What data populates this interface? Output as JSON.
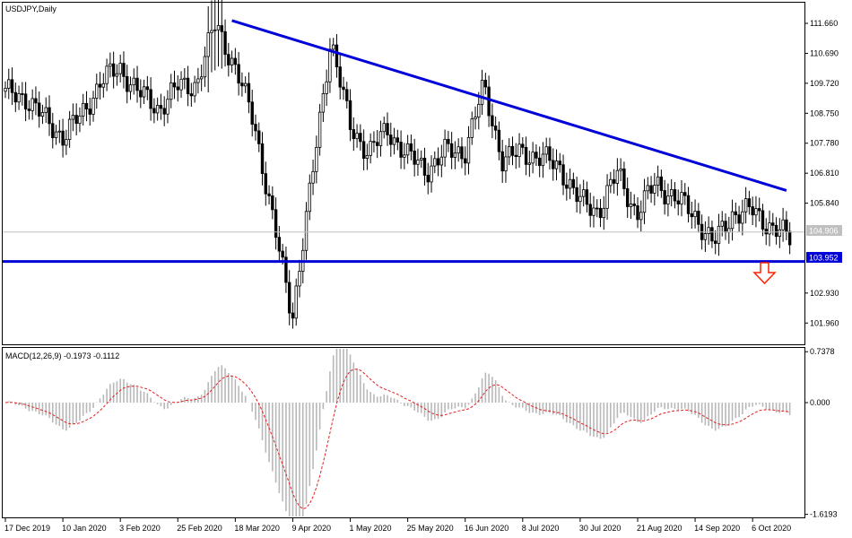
{
  "window": {
    "title": "USDJPY,Daily",
    "colors": {
      "background": "#ffffff",
      "frame": "#000000",
      "candle": "#000000",
      "trendline": "#0000d8",
      "current_price_line": "#c0c0c0",
      "macd_histogram": "#b8b8b8",
      "macd_signal": "#e02020",
      "arrow": "#ff2000"
    }
  },
  "chart_data": [
    {
      "type": "candlestick",
      "title": "USDJPY,Daily",
      "symbol": "USDJPY",
      "timeframe": "Daily",
      "ylim": [
        101.3,
        112.3
      ],
      "y_ticks": [
        "111.660",
        "110.690",
        "109.720",
        "108.750",
        "107.780",
        "106.810",
        "105.840",
        "102.930",
        "101.960"
      ],
      "y_tick_values": [
        111.66,
        110.69,
        109.72,
        108.75,
        107.78,
        106.81,
        105.84,
        102.93,
        101.96
      ],
      "x_ticks": [
        "17 Dec 2019",
        "10 Jan 2020",
        "3 Feb 2020",
        "25 Feb 2020",
        "18 Mar 2020",
        "9 Apr 2020",
        "1 May 2020",
        "25 May 2020",
        "16 Jun 2020",
        "8 Jul 2020",
        "30 Jul 2020",
        "21 Aug 2020",
        "14 Sep 2020",
        "6 Oct 2020"
      ],
      "x_tick_index": [
        0,
        17,
        34,
        51,
        68,
        85,
        102,
        119,
        136,
        153,
        170,
        187,
        204,
        221
      ],
      "price_labels": {
        "current": {
          "label": "104.906",
          "value": 104.906
        },
        "support": {
          "label": "103.952",
          "value": 103.952
        }
      },
      "closes_sample": [
        109.4,
        109.3,
        108.6,
        108.0,
        108.7,
        109.8,
        110.2,
        109.4,
        108.9,
        109.6,
        109.7,
        111.7,
        110.2,
        108.5,
        105.2,
        102.2,
        106.5,
        111.2,
        108.3,
        107.5,
        108.2,
        107.4,
        106.9,
        107.5,
        107.5,
        109.6,
        107.2,
        107.5,
        107.3,
        107.0,
        105.9,
        105.6,
        106.8,
        105.5,
        106.5,
        106.0,
        105.5,
        104.5,
        105.5,
        105.6,
        105.1,
        104.7
      ],
      "candles_count": 233,
      "trendlines": [
        {
          "name": "resistance",
          "from": {
            "index": 67,
            "price": 111.75
          },
          "to": {
            "index": 231,
            "price": 106.25
          }
        },
        {
          "name": "support",
          "price": 103.952,
          "horizontal": true
        }
      ],
      "annotation": "down-arrow"
    },
    {
      "type": "macd",
      "label": "MACD(12,26,9) -0.1973 -0.1112",
      "params": [
        12,
        26,
        9
      ],
      "macd_value": -0.1973,
      "signal_value": -0.1112,
      "ylim": [
        -1.65,
        0.78
      ],
      "y_ticks": [
        "0.7378",
        "0.000",
        "-1.6193"
      ],
      "y_tick_values": [
        0.7378,
        0.0,
        -1.6193
      ]
    }
  ]
}
